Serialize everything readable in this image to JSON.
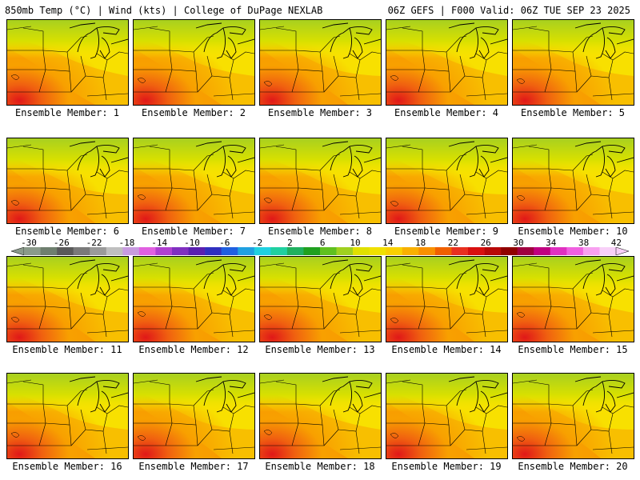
{
  "header": {
    "left": "850mb Temp (°C) | Wind (kts) | College of DuPage NEXLAB",
    "right": "06Z GEFS | F000 Valid: 06Z TUE SEP 23 2025"
  },
  "members": [
    "Ensemble Member: 1",
    "Ensemble Member: 2",
    "Ensemble Member: 3",
    "Ensemble Member: 4",
    "Ensemble Member: 5",
    "Ensemble Member: 6",
    "Ensemble Member: 7",
    "Ensemble Member: 8",
    "Ensemble Member: 9",
    "Ensemble Member: 10",
    "Ensemble Member: 11",
    "Ensemble Member: 12",
    "Ensemble Member: 13",
    "Ensemble Member: 14",
    "Ensemble Member: 15",
    "Ensemble Member: 16",
    "Ensemble Member: 17",
    "Ensemble Member: 18",
    "Ensemble Member: 19",
    "Ensemble Member: 20"
  ],
  "colorbar": {
    "labels": [
      "-30",
      "-26",
      "-22",
      "-18",
      "-14",
      "-10",
      "-6",
      "-2",
      "2",
      "6",
      "10",
      "14",
      "18",
      "22",
      "26",
      "30",
      "34",
      "38",
      "42"
    ],
    "colors": [
      "#8a9a8a",
      "#6f7f6f",
      "#5a5a5a",
      "#7a7a7a",
      "#9a9a9a",
      "#bfbfbf",
      "#c89be0",
      "#e060e0",
      "#b040d0",
      "#8030c0",
      "#5a20b0",
      "#3030c0",
      "#2060e0",
      "#20a0e0",
      "#20d0e0",
      "#20d0a0",
      "#20b060",
      "#20a020",
      "#60c020",
      "#a0d020",
      "#e0e000",
      "#f0e000",
      "#f8d000",
      "#f8b000",
      "#f89000",
      "#f06000",
      "#e83020",
      "#d81010",
      "#b80808",
      "#900000",
      "#a00040",
      "#c00080",
      "#e030c0",
      "#f060e0",
      "#f8a0f0",
      "#f8d0f8"
    ]
  }
}
